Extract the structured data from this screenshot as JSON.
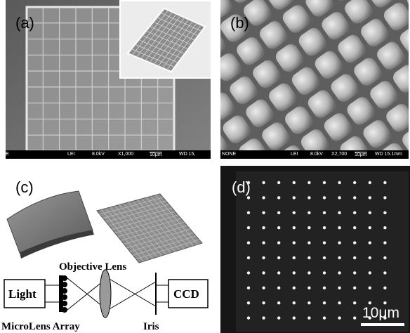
{
  "panels": {
    "a": {
      "label": "(a)",
      "sem_bar": {
        "detector": "LEI",
        "voltage": "8.0kV",
        "magnification": "X1,000",
        "scale": "10μm",
        "wd": "WD 15,",
        "left_mark": "E"
      }
    },
    "b": {
      "label": "(b)",
      "sem_bar": {
        "source": "NONE",
        "detector": "LEI",
        "voltage": "8.0kV",
        "magnification": "X2,700",
        "scale": "10μm",
        "wd": "WD 15.1mm"
      }
    },
    "c": {
      "label": "(c)",
      "diagram": {
        "objective_lens": "Objective Lens",
        "light": "Light",
        "ccd": "CCD",
        "microlens_array": "MicroLens Array",
        "iris": "Iris"
      }
    },
    "d": {
      "label": "(d)",
      "scale_bar": "10μm",
      "spot_grid": {
        "rows": 10,
        "cols": 10
      }
    }
  }
}
